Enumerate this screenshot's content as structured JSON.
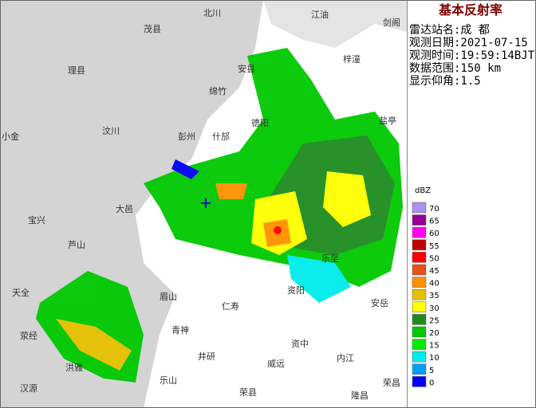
{
  "panel": {
    "title": "基本反射率",
    "lines": [
      "雷达站名:成 都",
      "观测日期:2021-07-15",
      "观测时间:19:59:14BJT",
      "数据范围:150 km",
      "显示仰角:1.5"
    ]
  },
  "legend": {
    "unit": "dBZ",
    "items": [
      {
        "value": 70,
        "color": "#ad90f0"
      },
      {
        "value": 65,
        "color": "#960096"
      },
      {
        "value": 60,
        "color": "#ff00f0"
      },
      {
        "value": 55,
        "color": "#c00000"
      },
      {
        "value": 50,
        "color": "#ff0000"
      },
      {
        "value": 45,
        "color": "#e8501a"
      },
      {
        "value": 40,
        "color": "#ff9000"
      },
      {
        "value": 35,
        "color": "#e7c000"
      },
      {
        "value": 30,
        "color": "#ffff00"
      },
      {
        "value": 25,
        "color": "#1e8c1e"
      },
      {
        "value": 20,
        "color": "#00c800"
      },
      {
        "value": 15,
        "color": "#00ec00"
      },
      {
        "value": 10,
        "color": "#00ecec"
      },
      {
        "value": 5,
        "color": "#01a0f6"
      },
      {
        "value": 0,
        "color": "#0000f6"
      }
    ]
  },
  "map": {
    "labels": [
      "北川",
      "江油",
      "剑阁",
      "茂县",
      "梓潼",
      "理县",
      "安县",
      "绵竹",
      "盐亭",
      "汶川",
      "彭州",
      "什邡",
      "德阳",
      "小金",
      "大邑",
      "宝兴",
      "芦山",
      "天全",
      "荥经",
      "洪雅",
      "汉源",
      "乐山",
      "青神",
      "眉山",
      "井研",
      "仁寿",
      "资阳",
      "乐至",
      "安岳",
      "资中",
      "威远",
      "内江",
      "荣县",
      "隆昌",
      "荣昌"
    ]
  }
}
